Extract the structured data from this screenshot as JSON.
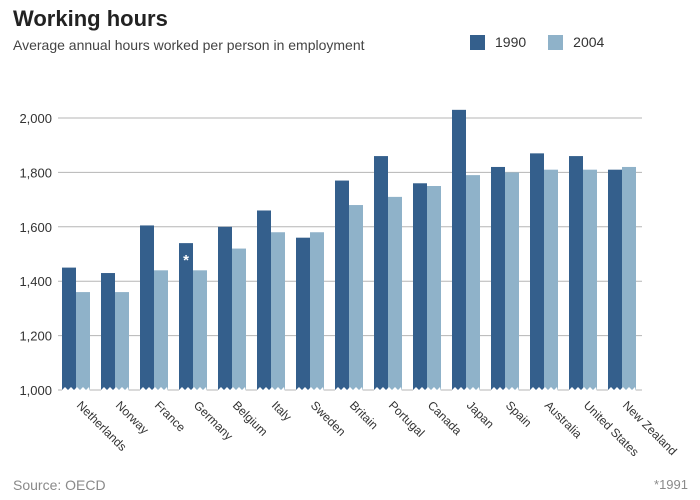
{
  "title": "Working hours",
  "subtitle": "Average annual hours worked per person in employment",
  "source": "Source: OECD",
  "footnote": "*1991",
  "colors": {
    "series_1990": "#345f8c",
    "series_2004": "#8fb2c9",
    "grid": "#b5b5b5",
    "background": "#ffffff"
  },
  "chart_data": {
    "type": "bar",
    "title": "Working hours",
    "subtitle": "Average annual hours worked per person in employment",
    "categories": [
      "Netherlands",
      "Norway",
      "France",
      "Germany",
      "Belgium",
      "Italy",
      "Sweden",
      "Britain",
      "Portugal",
      "Canada",
      "Japan",
      "Spain",
      "Australia",
      "United States",
      "New Zealand"
    ],
    "series": [
      {
        "name": "1990",
        "values": [
          1450,
          1430,
          1605,
          1540,
          1600,
          1660,
          1560,
          1770,
          1860,
          1760,
          2030,
          1820,
          1870,
          1860,
          1810
        ]
      },
      {
        "name": "2004",
        "values": [
          1360,
          1360,
          1440,
          1440,
          1520,
          1580,
          1580,
          1680,
          1710,
          1750,
          1790,
          1800,
          1810,
          1810,
          1820
        ]
      }
    ],
    "annotations": [
      {
        "category": "Germany",
        "series": "1990",
        "text": "*"
      }
    ],
    "yticks": [
      "1,000",
      "1,200",
      "1,400",
      "1,600",
      "1,800",
      "2,000"
    ],
    "ylim": [
      1000,
      2100
    ],
    "grid": true,
    "legend": "top-right",
    "xlabel": "",
    "ylabel": ""
  }
}
